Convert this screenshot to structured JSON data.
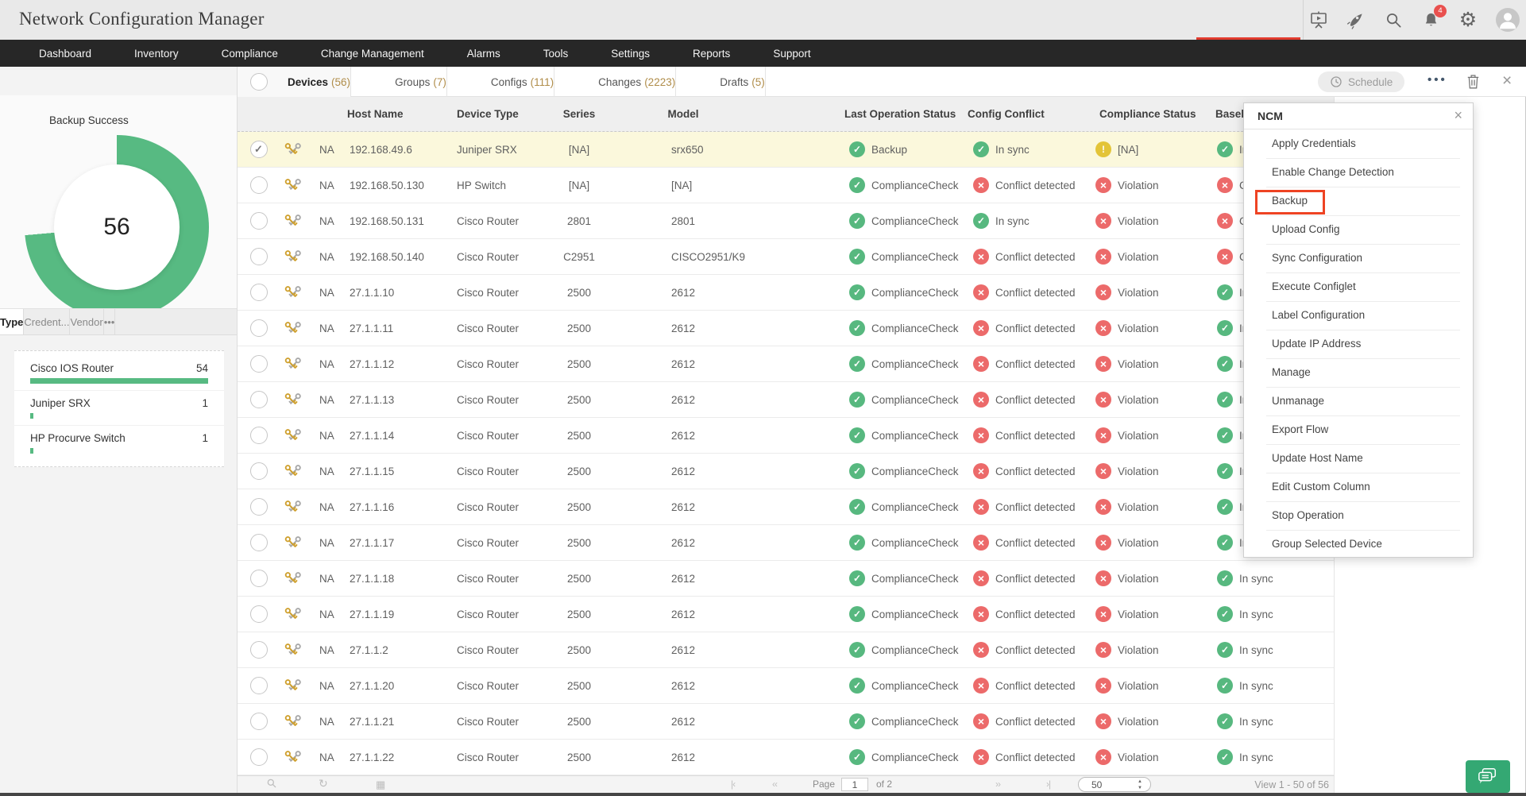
{
  "header": {
    "title": "Network Configuration Manager",
    "notification_count": "4"
  },
  "nav": {
    "items": [
      "Dashboard",
      "Inventory",
      "Compliance",
      "Change Management",
      "Alarms",
      "Tools",
      "Settings",
      "Reports",
      "Support"
    ]
  },
  "toolbar": {
    "tabs": [
      {
        "label": "Devices",
        "count": "(56)",
        "active": true
      },
      {
        "label": "Groups",
        "count": "(7)"
      },
      {
        "label": "Configs",
        "count": "(111)"
      },
      {
        "label": "Changes",
        "count": "(2223)"
      },
      {
        "label": "Drafts",
        "count": "(5)"
      }
    ],
    "schedule_label": "Schedule",
    "more_label": "•••",
    "close_label": "×"
  },
  "sidebar": {
    "donut": {
      "title": "Backup Success",
      "value": "56",
      "color": "#57ba82",
      "sweep_deg": 265
    },
    "tabs": [
      {
        "label": "Type",
        "active": true
      },
      {
        "label": "Credent..."
      },
      {
        "label": "Vendor"
      },
      {
        "label": "•••"
      }
    ],
    "device_types": [
      {
        "name": "Cisco IOS Router",
        "count": 54
      },
      {
        "name": "Juniper SRX",
        "count": 1
      },
      {
        "name": "HP Procurve Switch",
        "count": 1
      }
    ]
  },
  "table": {
    "columns": [
      "Host Name",
      "Device Type",
      "Series",
      "Model",
      "Last Operation Status",
      "Config Conflict",
      "Compliance Status",
      "Basel"
    ],
    "rows": [
      {
        "selected": true,
        "na": "NA",
        "ip": "192.168.49.6",
        "device_type": "Juniper SRX",
        "series": "[NA]",
        "model": "srx650",
        "last_op": {
          "icon": "check",
          "label": "Backup"
        },
        "config_conflict": {
          "icon": "check",
          "label": "In sync"
        },
        "compliance": {
          "icon": "warn",
          "label": "[NA]"
        },
        "baseline": {
          "icon": "check",
          "label": "In sync"
        }
      },
      {
        "na": "NA",
        "ip": "192.168.50.130",
        "device_type": "HP Switch",
        "series": "[NA]",
        "model": "[NA]",
        "last_op": {
          "icon": "check",
          "label": "ComplianceCheck"
        },
        "config_conflict": {
          "icon": "x",
          "label": "Conflict detected"
        },
        "compliance": {
          "icon": "x",
          "label": "Violation"
        },
        "baseline": {
          "icon": "x",
          "label": "Conflict detected"
        }
      },
      {
        "na": "NA",
        "ip": "192.168.50.131",
        "device_type": "Cisco Router",
        "series": "2801",
        "model": "2801",
        "last_op": {
          "icon": "check",
          "label": "ComplianceCheck"
        },
        "config_conflict": {
          "icon": "check",
          "label": "In sync"
        },
        "compliance": {
          "icon": "x",
          "label": "Violation"
        },
        "baseline": {
          "icon": "x",
          "label": "Conflict detected"
        }
      },
      {
        "na": "NA",
        "ip": "192.168.50.140",
        "device_type": "Cisco Router",
        "series": "C2951",
        "model": "CISCO2951/K9",
        "last_op": {
          "icon": "check",
          "label": "ComplianceCheck"
        },
        "config_conflict": {
          "icon": "x",
          "label": "Conflict detected"
        },
        "compliance": {
          "icon": "x",
          "label": "Violation"
        },
        "baseline": {
          "icon": "x",
          "label": "Conflict detected"
        }
      },
      {
        "na": "NA",
        "ip": "27.1.1.10",
        "device_type": "Cisco Router",
        "series": "2500",
        "model": "2612",
        "last_op": {
          "icon": "check",
          "label": "ComplianceCheck"
        },
        "config_conflict": {
          "icon": "x",
          "label": "Conflict detected"
        },
        "compliance": {
          "icon": "x",
          "label": "Violation"
        },
        "baseline": {
          "icon": "check",
          "label": "In sync"
        }
      },
      {
        "na": "NA",
        "ip": "27.1.1.11",
        "device_type": "Cisco Router",
        "series": "2500",
        "model": "2612",
        "last_op": {
          "icon": "check",
          "label": "ComplianceCheck"
        },
        "config_conflict": {
          "icon": "x",
          "label": "Conflict detected"
        },
        "compliance": {
          "icon": "x",
          "label": "Violation"
        },
        "baseline": {
          "icon": "check",
          "label": "In sync"
        }
      },
      {
        "na": "NA",
        "ip": "27.1.1.12",
        "device_type": "Cisco Router",
        "series": "2500",
        "model": "2612",
        "last_op": {
          "icon": "check",
          "label": "ComplianceCheck"
        },
        "config_conflict": {
          "icon": "x",
          "label": "Conflict detected"
        },
        "compliance": {
          "icon": "x",
          "label": "Violation"
        },
        "baseline": {
          "icon": "check",
          "label": "In sync"
        }
      },
      {
        "na": "NA",
        "ip": "27.1.1.13",
        "device_type": "Cisco Router",
        "series": "2500",
        "model": "2612",
        "last_op": {
          "icon": "check",
          "label": "ComplianceCheck"
        },
        "config_conflict": {
          "icon": "x",
          "label": "Conflict detected"
        },
        "compliance": {
          "icon": "x",
          "label": "Violation"
        },
        "baseline": {
          "icon": "check",
          "label": "In sync"
        }
      },
      {
        "na": "NA",
        "ip": "27.1.1.14",
        "device_type": "Cisco Router",
        "series": "2500",
        "model": "2612",
        "last_op": {
          "icon": "check",
          "label": "ComplianceCheck"
        },
        "config_conflict": {
          "icon": "x",
          "label": "Conflict detected"
        },
        "compliance": {
          "icon": "x",
          "label": "Violation"
        },
        "baseline": {
          "icon": "check",
          "label": "In sync"
        }
      },
      {
        "na": "NA",
        "ip": "27.1.1.15",
        "device_type": "Cisco Router",
        "series": "2500",
        "model": "2612",
        "last_op": {
          "icon": "check",
          "label": "ComplianceCheck"
        },
        "config_conflict": {
          "icon": "x",
          "label": "Conflict detected"
        },
        "compliance": {
          "icon": "x",
          "label": "Violation"
        },
        "baseline": {
          "icon": "check",
          "label": "In sync"
        }
      },
      {
        "na": "NA",
        "ip": "27.1.1.16",
        "device_type": "Cisco Router",
        "series": "2500",
        "model": "2612",
        "last_op": {
          "icon": "check",
          "label": "ComplianceCheck"
        },
        "config_conflict": {
          "icon": "x",
          "label": "Conflict detected"
        },
        "compliance": {
          "icon": "x",
          "label": "Violation"
        },
        "baseline": {
          "icon": "check",
          "label": "In sync"
        }
      },
      {
        "na": "NA",
        "ip": "27.1.1.17",
        "device_type": "Cisco Router",
        "series": "2500",
        "model": "2612",
        "last_op": {
          "icon": "check",
          "label": "ComplianceCheck"
        },
        "config_conflict": {
          "icon": "x",
          "label": "Conflict detected"
        },
        "compliance": {
          "icon": "x",
          "label": "Violation"
        },
        "baseline": {
          "icon": "check",
          "label": "In sync"
        }
      },
      {
        "na": "NA",
        "ip": "27.1.1.18",
        "device_type": "Cisco Router",
        "series": "2500",
        "model": "2612",
        "last_op": {
          "icon": "check",
          "label": "ComplianceCheck"
        },
        "config_conflict": {
          "icon": "x",
          "label": "Conflict detected"
        },
        "compliance": {
          "icon": "x",
          "label": "Violation"
        },
        "baseline": {
          "icon": "check",
          "label": "In sync"
        }
      },
      {
        "na": "NA",
        "ip": "27.1.1.19",
        "device_type": "Cisco Router",
        "series": "2500",
        "model": "2612",
        "last_op": {
          "icon": "check",
          "label": "ComplianceCheck"
        },
        "config_conflict": {
          "icon": "x",
          "label": "Conflict detected"
        },
        "compliance": {
          "icon": "x",
          "label": "Violation"
        },
        "baseline": {
          "icon": "check",
          "label": "In sync"
        }
      },
      {
        "na": "NA",
        "ip": "27.1.1.2",
        "device_type": "Cisco Router",
        "series": "2500",
        "model": "2612",
        "last_op": {
          "icon": "check",
          "label": "ComplianceCheck"
        },
        "config_conflict": {
          "icon": "x",
          "label": "Conflict detected"
        },
        "compliance": {
          "icon": "x",
          "label": "Violation"
        },
        "baseline": {
          "icon": "check",
          "label": "In sync"
        }
      },
      {
        "na": "NA",
        "ip": "27.1.1.20",
        "device_type": "Cisco Router",
        "series": "2500",
        "model": "2612",
        "last_op": {
          "icon": "check",
          "label": "ComplianceCheck"
        },
        "config_conflict": {
          "icon": "x",
          "label": "Conflict detected"
        },
        "compliance": {
          "icon": "x",
          "label": "Violation"
        },
        "baseline": {
          "icon": "check",
          "label": "In sync"
        }
      },
      {
        "na": "NA",
        "ip": "27.1.1.21",
        "device_type": "Cisco Router",
        "series": "2500",
        "model": "2612",
        "last_op": {
          "icon": "check",
          "label": "ComplianceCheck"
        },
        "config_conflict": {
          "icon": "x",
          "label": "Conflict detected"
        },
        "compliance": {
          "icon": "x",
          "label": "Violation"
        },
        "baseline": {
          "icon": "check",
          "label": "In sync"
        }
      },
      {
        "na": "NA",
        "ip": "27.1.1.22",
        "device_type": "Cisco Router",
        "series": "2500",
        "model": "2612",
        "last_op": {
          "icon": "check",
          "label": "ComplianceCheck"
        },
        "config_conflict": {
          "icon": "x",
          "label": "Conflict detected"
        },
        "compliance": {
          "icon": "x",
          "label": "Violation"
        },
        "baseline": {
          "icon": "check",
          "label": "In sync"
        }
      }
    ]
  },
  "menu": {
    "title": "NCM",
    "close_label": "×",
    "highlighted_item": "Backup",
    "highlight_color": "#ee4323",
    "items": [
      {
        "label": "Apply Credentials"
      },
      {
        "label": "Enable Change Detection"
      },
      {
        "label": "Backup",
        "highlighted": true
      },
      {
        "label": "Upload Config"
      },
      {
        "label": "Sync Configuration"
      },
      {
        "label": "Execute Configlet"
      },
      {
        "label": "Label Configuration"
      },
      {
        "label": "Update IP Address"
      },
      {
        "label": "Manage"
      },
      {
        "label": "Unmanage"
      },
      {
        "label": "Export Flow"
      },
      {
        "label": "Update Host Name"
      },
      {
        "label": "Edit Custom Column"
      },
      {
        "label": "Stop Operation"
      },
      {
        "label": "Group Selected Device"
      }
    ]
  },
  "footer": {
    "page_label": "Page",
    "page_value": "1",
    "of_label": "of 2",
    "first_glyph": "|‹",
    "prev_glyph": "‹‹",
    "next_glyph": "››",
    "last_glyph": "›|",
    "page_size": "50",
    "view": "View 1 - 50 of 56"
  },
  "colors": {
    "status_ok": "#57b87f",
    "status_error": "#ec6a6a",
    "status_warn": "#e3c438",
    "donut_green": "#57ba82",
    "selected_row": "#fbf8dc",
    "highlight_red": "#ee4323",
    "chat_green": "#34a873",
    "nav_bg": "#272727"
  }
}
